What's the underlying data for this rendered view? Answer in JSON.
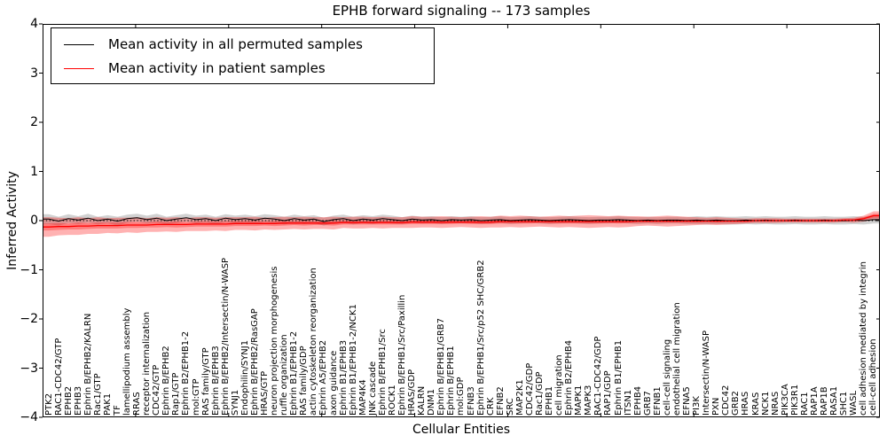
{
  "chart_data": {
    "type": "line",
    "title": "EPHB forward signaling -- 173 samples",
    "xlabel": "Cellular Entities",
    "ylabel": "Inferred Activity",
    "ylim": [
      -4,
      4
    ],
    "ytick_labels": [
      "4",
      "3",
      "2",
      "1",
      "0",
      "−1",
      "−2",
      "−3",
      "−4"
    ],
    "ytick_values": [
      4,
      3,
      2,
      1,
      0,
      -1,
      -2,
      -3,
      -4
    ],
    "zero_reference_line": true,
    "legend_position": "upper left",
    "sample_count": 173,
    "categories": [
      "PTK2",
      "RAC1-CDC42/GTP",
      "EPHB2",
      "EPHB3",
      "Ephrin B/EPHB2/KALRN",
      "Rac1/GTP",
      "PAK1",
      "TF",
      "lamellipodium assembly",
      "RRAS",
      "receptor internalization",
      "CDC42/GTP",
      "Ephrin B/EPHB2",
      "Rap1/GTP",
      "Ephrin B2/EPHB1-2",
      "mol:GTP",
      "RAS family/GTP",
      "Ephrin B/EPHB3",
      "Ephrin B/EPHB2/Intersectin/N-WASP",
      "SYNJ1",
      "Endophilin/SYNJ1",
      "Ephrin B/EPHB2/RasGAP",
      "HRAS/GTP",
      "neuron projection morphogenesis",
      "ruffle organization",
      "Ephrin B1/EPHB1-2",
      "RAS family/GDP",
      "actin cytoskeleton reorganization",
      "Ephrin A5/EPHB2",
      "axon guidance",
      "Ephrin B1/EPHB3",
      "Ephrin B1/EPHB1-2/NCK1",
      "MAP4K4",
      "JNK cascade",
      "Ephrin B/EPHB1/Src",
      "ROCK1",
      "Ephrin B/EPHB1/Src/Paxillin",
      "HRAS/GDP",
      "KALRN",
      "DNM1",
      "Ephrin B/EPHB1/GRB7",
      "Ephrin B/EPHB1",
      "mol:GDP",
      "EFNB3",
      "Ephrin B/EPHB1/Src/p52 SHC/GRB2",
      "CRK",
      "EFNB2",
      "SRC",
      "MAP2K1",
      "CDC42/GDP",
      "Rac1/GDP",
      "EPHB1",
      "cell migration",
      "Ephrin B2/EPHB4",
      "MAPK1",
      "MAPK3",
      "RAC1-CDC42/GDP",
      "RAP1/GDP",
      "Ephrin B1/EPHB1",
      "ITSN1",
      "EPHB4",
      "GRB7",
      "EFNB1",
      "cell-cell signaling",
      "endothelial cell migration",
      "EFNA5",
      "PI3K",
      "Intersectin/N-WASP",
      "PXN",
      "CDC42",
      "GRB2",
      "HRAS",
      "KRAS",
      "NCK1",
      "NRAS",
      "PIK3CA",
      "PIK3R1",
      "RAC1",
      "RAP1A",
      "RAP1B",
      "RASA1",
      "SHC1",
      "WASL",
      "cell adhesion mediated by integrin",
      "cell-cell adhesion"
    ],
    "series": [
      {
        "name": "Mean activity in all permuted samples",
        "color": "#000000",
        "band_color": "rgba(0,0,0,0.18)",
        "mean": [
          0.03,
          -0.01,
          0.04,
          0.01,
          0.05,
          0.0,
          0.03,
          -0.01,
          0.04,
          0.06,
          0.02,
          0.05,
          0.0,
          0.03,
          0.06,
          0.02,
          0.04,
          0.0,
          0.05,
          0.02,
          0.04,
          0.01,
          0.05,
          0.03,
          0.0,
          0.04,
          0.01,
          0.03,
          -0.02,
          0.02,
          0.04,
          0.0,
          0.03,
          0.01,
          0.04,
          0.02,
          0.0,
          0.03,
          0.01,
          0.02,
          0.0,
          0.02,
          0.01,
          0.02,
          0.0,
          0.01,
          0.02,
          0.0,
          0.01,
          0.02,
          0.01,
          0.0,
          0.01,
          0.02,
          0.01,
          0.0,
          0.01,
          0.01,
          0.02,
          0.01,
          0.0,
          0.01,
          0.0,
          0.01,
          0.01,
          0.0,
          0.01,
          0.0,
          0.01,
          0.0,
          0.0,
          0.01,
          0.0,
          0.01,
          0.0,
          0.0,
          0.01,
          0.0,
          0.0,
          0.01,
          0.0,
          0.0,
          0.01,
          0.0,
          0.02
        ],
        "band_half_width": [
          0.1,
          0.09,
          0.09,
          0.08,
          0.09,
          0.08,
          0.08,
          0.09,
          0.08,
          0.08,
          0.08,
          0.09,
          0.08,
          0.08,
          0.08,
          0.08,
          0.08,
          0.08,
          0.08,
          0.08,
          0.08,
          0.08,
          0.08,
          0.08,
          0.08,
          0.08,
          0.08,
          0.08,
          0.08,
          0.08,
          0.08,
          0.08,
          0.08,
          0.08,
          0.08,
          0.08,
          0.07,
          0.07,
          0.07,
          0.07,
          0.07,
          0.07,
          0.07,
          0.07,
          0.07,
          0.07,
          0.07,
          0.07,
          0.07,
          0.07,
          0.07,
          0.07,
          0.07,
          0.07,
          0.07,
          0.07,
          0.07,
          0.07,
          0.07,
          0.07,
          0.07,
          0.07,
          0.07,
          0.07,
          0.07,
          0.07,
          0.08,
          0.08,
          0.08,
          0.08,
          0.08,
          0.08,
          0.08,
          0.08,
          0.08,
          0.08,
          0.08,
          0.08,
          0.08,
          0.08,
          0.08,
          0.08,
          0.08,
          0.08,
          0.08
        ]
      },
      {
        "name": "Mean activity in patient samples",
        "color": "#ff0000",
        "band_color": "rgba(255,0,0,0.30)",
        "mean": [
          -0.13,
          -0.12,
          -0.12,
          -0.11,
          -0.11,
          -0.1,
          -0.1,
          -0.1,
          -0.09,
          -0.09,
          -0.09,
          -0.08,
          -0.08,
          -0.08,
          -0.08,
          -0.07,
          -0.07,
          -0.07,
          -0.07,
          -0.06,
          -0.06,
          -0.06,
          -0.06,
          -0.06,
          -0.05,
          -0.05,
          -0.05,
          -0.05,
          -0.05,
          -0.05,
          -0.04,
          -0.04,
          -0.04,
          -0.04,
          -0.04,
          -0.04,
          -0.04,
          -0.03,
          -0.03,
          -0.03,
          -0.03,
          -0.03,
          -0.03,
          -0.03,
          -0.03,
          -0.03,
          -0.02,
          -0.02,
          -0.02,
          -0.02,
          -0.02,
          -0.02,
          -0.02,
          -0.02,
          -0.02,
          -0.02,
          -0.02,
          -0.02,
          -0.02,
          -0.02,
          -0.01,
          -0.01,
          -0.01,
          -0.01,
          -0.01,
          -0.01,
          -0.01,
          -0.01,
          -0.01,
          -0.01,
          -0.01,
          -0.01,
          0.0,
          0.0,
          0.0,
          0.0,
          0.0,
          0.0,
          0.0,
          0.0,
          0.0,
          0.01,
          0.01,
          0.04,
          0.1
        ],
        "band_outer_half_width": [
          0.2,
          0.18,
          0.17,
          0.18,
          0.16,
          0.17,
          0.15,
          0.16,
          0.15,
          0.16,
          0.14,
          0.15,
          0.14,
          0.15,
          0.13,
          0.14,
          0.14,
          0.13,
          0.14,
          0.13,
          0.13,
          0.14,
          0.12,
          0.13,
          0.13,
          0.12,
          0.13,
          0.12,
          0.12,
          0.13,
          0.11,
          0.12,
          0.12,
          0.11,
          0.12,
          0.11,
          0.11,
          0.12,
          0.11,
          0.11,
          0.12,
          0.11,
          0.1,
          0.11,
          0.12,
          0.11,
          0.12,
          0.11,
          0.12,
          0.11,
          0.1,
          0.11,
          0.12,
          0.11,
          0.12,
          0.13,
          0.12,
          0.11,
          0.12,
          0.11,
          0.1,
          0.09,
          0.1,
          0.11,
          0.1,
          0.09,
          0.08,
          0.07,
          0.08,
          0.07,
          0.06,
          0.05,
          0.05,
          0.05,
          0.05,
          0.04,
          0.04,
          0.04,
          0.04,
          0.04,
          0.04,
          0.04,
          0.05,
          0.06,
          0.09
        ],
        "band_inner_half_width": [
          0.07,
          0.07,
          0.06,
          0.07,
          0.06,
          0.06,
          0.06,
          0.06,
          0.06,
          0.06,
          0.05,
          0.06,
          0.05,
          0.06,
          0.05,
          0.05,
          0.05,
          0.05,
          0.05,
          0.05,
          0.05,
          0.05,
          0.04,
          0.05,
          0.05,
          0.04,
          0.05,
          0.04,
          0.04,
          0.05,
          0.04,
          0.04,
          0.04,
          0.04,
          0.04,
          0.04,
          0.04,
          0.04,
          0.04,
          0.04,
          0.04,
          0.04,
          0.03,
          0.04,
          0.04,
          0.04,
          0.04,
          0.04,
          0.04,
          0.04,
          0.03,
          0.04,
          0.04,
          0.04,
          0.04,
          0.04,
          0.04,
          0.03,
          0.04,
          0.03,
          0.03,
          0.03,
          0.03,
          0.03,
          0.03,
          0.03,
          0.03,
          0.02,
          0.03,
          0.02,
          0.02,
          0.02,
          0.02,
          0.02,
          0.02,
          0.02,
          0.02,
          0.02,
          0.02,
          0.02,
          0.02,
          0.02,
          0.02,
          0.03,
          0.04
        ]
      }
    ]
  },
  "legend": {
    "entries": [
      {
        "label": "Mean activity in all permuted samples",
        "color": "#000000"
      },
      {
        "label": "Mean activity in patient samples",
        "color": "#ff0000"
      }
    ]
  }
}
